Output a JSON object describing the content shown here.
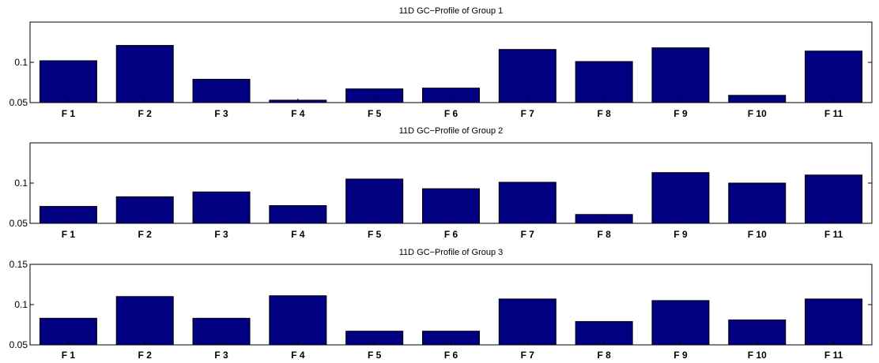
{
  "colors": {
    "bar": "#000080",
    "background": "#ffffff",
    "axis": "#000000"
  },
  "chart_data": [
    {
      "type": "bar",
      "title": "11D GC−Profile of Group 1",
      "categories": [
        "F 1",
        "F 2",
        "F 3",
        "F 4",
        "F 5",
        "F 6",
        "F 7",
        "F 8",
        "F 9",
        "F 10",
        "F 11"
      ],
      "values": [
        0.102,
        0.121,
        0.079,
        0.053,
        0.067,
        0.068,
        0.116,
        0.101,
        0.118,
        0.059,
        0.114
      ],
      "ylim": [
        0.05,
        0.15
      ],
      "yticks": [
        0.05,
        0.1
      ],
      "ytick_labels": [
        "0.05",
        "0.1"
      ],
      "xlabel": "",
      "ylabel": "",
      "grid": false
    },
    {
      "type": "bar",
      "title": "11D GC−Profile of Group 2",
      "categories": [
        "F 1",
        "F 2",
        "F 3",
        "F 4",
        "F 5",
        "F 6",
        "F 7",
        "F 8",
        "F 9",
        "F 10",
        "F 11"
      ],
      "values": [
        0.071,
        0.083,
        0.089,
        0.072,
        0.105,
        0.093,
        0.101,
        0.061,
        0.113,
        0.1,
        0.11
      ],
      "ylim": [
        0.05,
        0.15
      ],
      "yticks": [
        0.05,
        0.1
      ],
      "ytick_labels": [
        "0.05",
        "0.1"
      ],
      "xlabel": "",
      "ylabel": "",
      "grid": false
    },
    {
      "type": "bar",
      "title": "11D GC−Profile of Group 3",
      "categories": [
        "F 1",
        "F 2",
        "F 3",
        "F 4",
        "F 5",
        "F 6",
        "F 7",
        "F 8",
        "F 9",
        "F 10",
        "F 11"
      ],
      "values": [
        0.083,
        0.11,
        0.083,
        0.111,
        0.067,
        0.067,
        0.107,
        0.079,
        0.105,
        0.081,
        0.107
      ],
      "ylim": [
        0.05,
        0.15
      ],
      "yticks": [
        0.05,
        0.1,
        0.15
      ],
      "ytick_labels": [
        "0.05",
        "0.1",
        "0.15"
      ],
      "xlabel": "",
      "ylabel": "",
      "grid": false
    }
  ]
}
